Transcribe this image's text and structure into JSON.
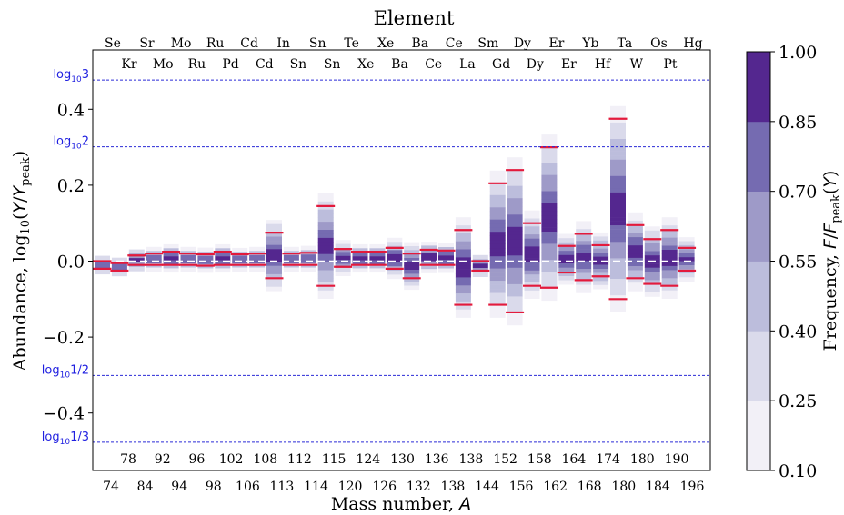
{
  "chart_data": {
    "type": "heatmap",
    "title": "Element",
    "xlabel": "Mass number, A",
    "ylabel": "Abundance, log10(Y/Ypeak)",
    "ylim": [
      -0.55,
      0.53
    ],
    "yticks": [
      0.4,
      0.2,
      0.0,
      -0.2,
      -0.4
    ],
    "ytick_labels": [
      "0.4",
      "0.2",
      "0.0",
      "−0.2",
      "−0.4"
    ],
    "reference_lines": [
      {
        "label": "log103",
        "base": "log",
        "sub": "10",
        "arg": "3",
        "value": 0.477
      },
      {
        "label": "log102",
        "base": "log",
        "sub": "10",
        "arg": "2",
        "value": 0.301
      },
      {
        "label": "log101/2",
        "base": "log",
        "sub": "10",
        "arg": "1/2",
        "value": -0.301
      },
      {
        "label": "log101/3",
        "base": "log",
        "sub": "10",
        "arg": "1/3",
        "value": -0.477
      }
    ],
    "top_elements_row1": [
      "Se",
      "Sr",
      "Mo",
      "Ru",
      "Cd",
      "In",
      "Sn",
      "Te",
      "Xe",
      "Ba",
      "Ce",
      "Sm",
      "Dy",
      "Er",
      "Yb",
      "Ta",
      "Os",
      "Hg"
    ],
    "top_elements_row2": [
      "Kr",
      "Mo",
      "Ru",
      "Pd",
      "Cd",
      "Sn",
      "Sn",
      "Xe",
      "Ba",
      "Ce",
      "La",
      "Gd",
      "Dy",
      "Er",
      "Hf",
      "W",
      "Pt"
    ],
    "mass_numbers_row1": [
      "74",
      "84",
      "94",
      "98",
      "106",
      "113",
      "114",
      "120",
      "126",
      "132",
      "138",
      "144",
      "156",
      "162",
      "168",
      "180",
      "184",
      "196"
    ],
    "mass_numbers_row2": [
      "78",
      "92",
      "96",
      "102",
      "108",
      "112",
      "115",
      "124",
      "130",
      "136",
      "138",
      "152",
      "158",
      "164",
      "174",
      "180",
      "190"
    ],
    "isotopes": [
      {
        "A": "74",
        "lo": -0.02,
        "hi": 0.0
      },
      {
        "A": "78",
        "lo": -0.025,
        "hi": -0.005
      },
      {
        "A": "84",
        "lo": -0.01,
        "hi": 0.015
      },
      {
        "A": "92",
        "lo": -0.01,
        "hi": 0.02
      },
      {
        "A": "94",
        "lo": -0.01,
        "hi": 0.025
      },
      {
        "A": "96",
        "lo": -0.01,
        "hi": 0.02
      },
      {
        "A": "98",
        "lo": -0.012,
        "hi": 0.018
      },
      {
        "A": "102",
        "lo": -0.01,
        "hi": 0.025
      },
      {
        "A": "106",
        "lo": -0.01,
        "hi": 0.018
      },
      {
        "A": "108",
        "lo": -0.01,
        "hi": 0.02
      },
      {
        "A": "113",
        "lo": -0.045,
        "hi": 0.075
      },
      {
        "A": "112",
        "lo": -0.01,
        "hi": 0.02
      },
      {
        "A": "114",
        "lo": -0.01,
        "hi": 0.022
      },
      {
        "A": "115",
        "lo": -0.065,
        "hi": 0.145
      },
      {
        "A": "120",
        "lo": -0.015,
        "hi": 0.032
      },
      {
        "A": "124",
        "lo": -0.01,
        "hi": 0.025
      },
      {
        "A": "126",
        "lo": -0.01,
        "hi": 0.025
      },
      {
        "A": "130",
        "lo": -0.02,
        "hi": 0.035
      },
      {
        "A": "132",
        "lo": -0.045,
        "hi": 0.02
      },
      {
        "A": "136",
        "lo": -0.01,
        "hi": 0.03
      },
      {
        "A": "138",
        "lo": -0.01,
        "hi": 0.028
      },
      {
        "A": "138",
        "lo": -0.115,
        "hi": 0.082
      },
      {
        "A": "144",
        "lo": -0.025,
        "hi": 0.0
      },
      {
        "A": "152",
        "lo": -0.115,
        "hi": 0.205
      },
      {
        "A": "156",
        "lo": -0.135,
        "hi": 0.24
      },
      {
        "A": "158",
        "lo": -0.065,
        "hi": 0.1
      },
      {
        "A": "162",
        "lo": -0.07,
        "hi": 0.3
      },
      {
        "A": "164",
        "lo": -0.03,
        "hi": 0.04
      },
      {
        "A": "168",
        "lo": -0.05,
        "hi": 0.072
      },
      {
        "A": "174",
        "lo": -0.04,
        "hi": 0.042
      },
      {
        "A": "180",
        "lo": -0.1,
        "hi": 0.375
      },
      {
        "A": "180",
        "lo": -0.045,
        "hi": 0.095
      },
      {
        "A": "184",
        "lo": -0.06,
        "hi": 0.058
      },
      {
        "A": "190",
        "lo": -0.065,
        "hi": 0.082
      },
      {
        "A": "196",
        "lo": -0.025,
        "hi": 0.035
      }
    ],
    "colorbar": {
      "label": "Frequency, F/Fpeak(Y)",
      "ticks": [
        "1.00",
        "0.85",
        "0.70",
        "0.55",
        "0.40",
        "0.25",
        "0.10"
      ],
      "colors": [
        "#f2f0f7",
        "#dadaeb",
        "#bcbddc",
        "#9e9ac8",
        "#756bb1",
        "#54278f"
      ]
    },
    "colors": {
      "marker": "#e31a3c",
      "refline": "#2b2bd6",
      "refline_label": "#1f1fe0",
      "zero_line": "#ffffff"
    },
    "grid": false
  }
}
